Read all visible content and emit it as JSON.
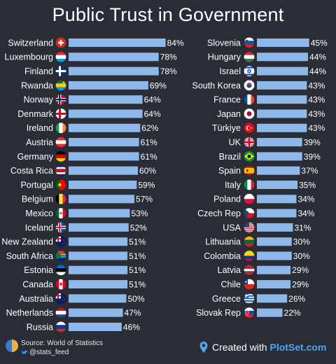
{
  "chart_data": {
    "type": "bar",
    "title": "Public Trust in Government",
    "value_suffix": "%",
    "bar_color": "#8fb8ea",
    "xlim": [
      0,
      100
    ],
    "columns": [
      {
        "categories": [
          "Switzerland",
          "Luxembourg",
          "Finland",
          "Rwanda",
          "Norway",
          "Denmark",
          "Ireland",
          "Austria",
          "Germany",
          "Costa Rica",
          "Portugal",
          "Belgium",
          "Mexico",
          "Iceland",
          "New Zealand",
          "South Africa",
          "Estonia",
          "Canada",
          "Australia",
          "Netherlands",
          "Russia"
        ],
        "values": [
          84,
          78,
          78,
          69,
          64,
          64,
          62,
          61,
          61,
          60,
          59,
          57,
          53,
          52,
          51,
          51,
          51,
          51,
          50,
          47,
          46
        ]
      },
      {
        "categories": [
          "Slovenia",
          "Hungary",
          "Israel",
          "South Korea",
          "France",
          "Japan",
          "Türkiye",
          "UK",
          "Brazil",
          "Spain",
          "Italy",
          "Poland",
          "Czech Rep",
          "USA",
          "Lithuania",
          "Colombia",
          "Latvia",
          "Chile",
          "Greece",
          "Slovak Rep"
        ],
        "values": [
          45,
          44,
          44,
          43,
          43,
          43,
          43,
          39,
          39,
          37,
          35,
          34,
          34,
          31,
          30,
          30,
          29,
          29,
          26,
          22
        ]
      }
    ]
  },
  "flag_icons": {
    "Switzerland": {
      "type": "swiss",
      "colors": [
        "#d52b1e",
        "#ffffff"
      ]
    },
    "Luxembourg": {
      "type": "h3",
      "colors": [
        "#ed2939",
        "#ffffff",
        "#00a1de"
      ]
    },
    "Finland": {
      "type": "nordic",
      "colors": [
        "#ffffff",
        "#003580"
      ]
    },
    "Rwanda": {
      "type": "h3w",
      "colors": [
        "#20603d",
        "#fad201",
        "#00a1de"
      ]
    },
    "Norway": {
      "type": "nordic2",
      "colors": [
        "#ba0c2f",
        "#ffffff",
        "#00205b"
      ]
    },
    "Denmark": {
      "type": "nordic",
      "colors": [
        "#c8102e",
        "#ffffff"
      ]
    },
    "Ireland": {
      "type": "v3",
      "colors": [
        "#169b62",
        "#ffffff",
        "#ff883e"
      ]
    },
    "Austria": {
      "type": "h3",
      "colors": [
        "#ed2939",
        "#ffffff",
        "#ed2939"
      ]
    },
    "Germany": {
      "type": "h3",
      "colors": [
        "#000000",
        "#dd0000",
        "#ffce00"
      ]
    },
    "Costa Rica": {
      "type": "h5",
      "colors": [
        "#002b7f",
        "#ffffff",
        "#ce1126",
        "#ffffff",
        "#002b7f"
      ]
    },
    "Portugal": {
      "type": "v2",
      "colors": [
        "#006600",
        "#ff0000"
      ]
    },
    "Belgium": {
      "type": "v3",
      "colors": [
        "#000000",
        "#fae042",
        "#ed2939"
      ]
    },
    "Mexico": {
      "type": "v3dot",
      "colors": [
        "#006847",
        "#ffffff",
        "#ce1126"
      ]
    },
    "Iceland": {
      "type": "nordic2",
      "colors": [
        "#02529c",
        "#ffffff",
        "#dc1e35"
      ]
    },
    "New Zealand": {
      "type": "ensign",
      "colors": [
        "#012169",
        "#c8102e"
      ]
    },
    "South Africa": {
      "type": "sa",
      "colors": [
        "#007a4d",
        "#de3831",
        "#002395",
        "#ffb612"
      ]
    },
    "Estonia": {
      "type": "h3",
      "colors": [
        "#0072ce",
        "#000000",
        "#ffffff"
      ]
    },
    "Canada": {
      "type": "v3leaf",
      "colors": [
        "#d80621",
        "#ffffff",
        "#d80621"
      ]
    },
    "Australia": {
      "type": "ensign",
      "colors": [
        "#012169",
        "#c8102e"
      ]
    },
    "Netherlands": {
      "type": "h3",
      "colors": [
        "#ae1c28",
        "#ffffff",
        "#21468b"
      ]
    },
    "Russia": {
      "type": "h3",
      "colors": [
        "#ffffff",
        "#0039a6",
        "#d52b1e"
      ]
    },
    "Slovenia": {
      "type": "h3",
      "colors": [
        "#ffffff",
        "#005da4",
        "#ed1c24"
      ]
    },
    "Hungary": {
      "type": "h3",
      "colors": [
        "#ce2939",
        "#ffffff",
        "#477050"
      ]
    },
    "Israel": {
      "type": "israel",
      "colors": [
        "#ffffff",
        "#0038b8"
      ]
    },
    "South Korea": {
      "type": "korea",
      "colors": [
        "#ffffff",
        "#cd2e3a",
        "#0047a0"
      ]
    },
    "France": {
      "type": "v3",
      "colors": [
        "#0055a4",
        "#ffffff",
        "#ef4135"
      ]
    },
    "Japan": {
      "type": "disc",
      "colors": [
        "#ffffff",
        "#bc002d"
      ]
    },
    "Türkiye": {
      "type": "disc2",
      "colors": [
        "#e30a17",
        "#ffffff"
      ]
    },
    "UK": {
      "type": "uk",
      "colors": [
        "#012169",
        "#ffffff",
        "#c8102e"
      ]
    },
    "Brazil": {
      "type": "brazil",
      "colors": [
        "#009c3b",
        "#ffdf00",
        "#002776"
      ]
    },
    "Spain": {
      "type": "spain",
      "colors": [
        "#aa151b",
        "#f1bf00"
      ]
    },
    "Italy": {
      "type": "v3",
      "colors": [
        "#009246",
        "#ffffff",
        "#ce2b37"
      ]
    },
    "Poland": {
      "type": "h2",
      "colors": [
        "#ffffff",
        "#dc143c"
      ]
    },
    "Czech Rep": {
      "type": "czech",
      "colors": [
        "#ffffff",
        "#d7141a",
        "#11457e"
      ]
    },
    "USA": {
      "type": "usa",
      "colors": [
        "#b22234",
        "#ffffff",
        "#3c3b6e"
      ]
    },
    "Lithuania": {
      "type": "h3",
      "colors": [
        "#fdb913",
        "#006a44",
        "#c1272d"
      ]
    },
    "Colombia": {
      "type": "h3c",
      "colors": [
        "#fcd116",
        "#003893",
        "#ce1126"
      ]
    },
    "Latvia": {
      "type": "h3l",
      "colors": [
        "#9e3039",
        "#ffffff",
        "#9e3039"
      ]
    },
    "Chile": {
      "type": "chile",
      "colors": [
        "#ffffff",
        "#d52b1e",
        "#0039a6"
      ]
    },
    "Greece": {
      "type": "greece",
      "colors": [
        "#0d5eaf",
        "#ffffff"
      ]
    },
    "Slovak Rep": {
      "type": "h3s",
      "colors": [
        "#ffffff",
        "#0b4ea2",
        "#ee1c25"
      ]
    }
  },
  "footer": {
    "source": "Source: World of Statistics",
    "handle": "@stats_feed",
    "created_prefix": "Created with ",
    "created_brand": "PlotSet.com"
  }
}
